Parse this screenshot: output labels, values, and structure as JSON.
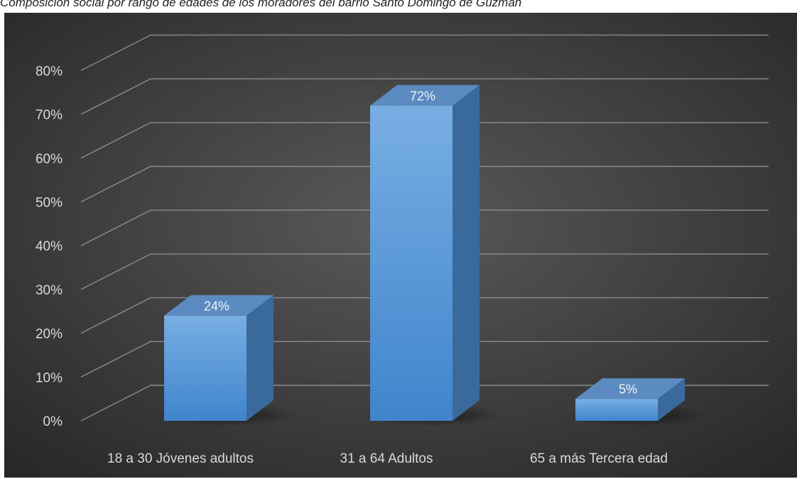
{
  "caption": "Composición social por rango de edades de los moradores del barrio Santo Domingo de Guzmán",
  "chart_data": {
    "type": "bar",
    "style": "3d-column",
    "categories": [
      "18 a 30 Jóvenes adultos",
      "31 a 64 Adultos",
      "65 a más Tercera edad"
    ],
    "values": [
      0.24,
      0.72,
      0.05
    ],
    "data_labels": [
      "24%",
      "72%",
      "5%"
    ],
    "y_ticks": [
      0,
      0.1,
      0.2,
      0.3,
      0.4,
      0.5,
      0.6,
      0.7,
      0.8
    ],
    "y_tick_labels": [
      "0%",
      "10%",
      "20%",
      "30%",
      "40%",
      "50%",
      "60%",
      "70%",
      "80%"
    ],
    "ylim": [
      0,
      0.8
    ],
    "grid": true,
    "legend": "none",
    "colors": {
      "background_center": "#595959",
      "background_edge": "#262626",
      "bar_front_top": "#78aee3",
      "bar_front_bottom": "#3f85cc",
      "bar_side": "#3a6a9c",
      "bar_top": "#5b8bc0",
      "grid": "#8c8c8c",
      "text": "#d9d9d9"
    }
  }
}
